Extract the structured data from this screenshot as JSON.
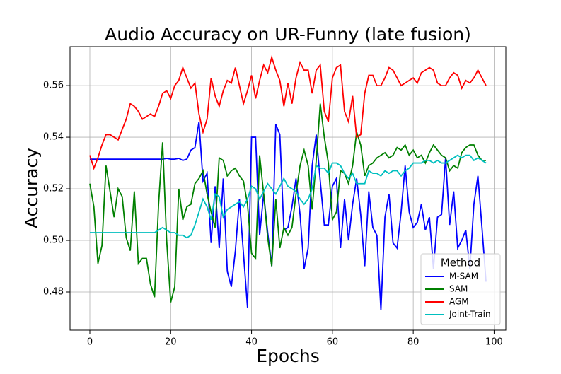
{
  "chart_data": {
    "type": "line",
    "title": "Audio Accuracy on UR-Funny (late fusion)",
    "x_label": "Epochs",
    "y_label": "Accuracy",
    "legend_title": "Method",
    "legend_position": "lower right",
    "grid": true,
    "xlim": [
      -4.9,
      102.9
    ],
    "ylim": [
      0.4652,
      0.5751
    ],
    "xticks": [
      0,
      20,
      40,
      60,
      80,
      100
    ],
    "yticks": [
      0.48,
      {
        "value": 0.5,
        "label": "0.50"
      },
      0.52,
      0.54,
      0.56
    ],
    "x": [
      0,
      1,
      2,
      3,
      4,
      5,
      6,
      7,
      8,
      9,
      10,
      11,
      12,
      13,
      14,
      15,
      16,
      17,
      18,
      19,
      20,
      21,
      22,
      23,
      24,
      25,
      26,
      27,
      28,
      29,
      30,
      31,
      32,
      33,
      34,
      35,
      36,
      37,
      38,
      39,
      40,
      41,
      42,
      43,
      44,
      45,
      46,
      47,
      48,
      49,
      50,
      51,
      52,
      53,
      54,
      55,
      56,
      57,
      58,
      59,
      60,
      61,
      62,
      63,
      64,
      65,
      66,
      67,
      68,
      69,
      70,
      71,
      72,
      73,
      74,
      75,
      76,
      77,
      78,
      79,
      80,
      81,
      82,
      83,
      84,
      85,
      86,
      87,
      88,
      89,
      90,
      91,
      92,
      93,
      94,
      95,
      96,
      97,
      98
    ],
    "series": [
      {
        "name": "M-SAM",
        "color": "#0000ff",
        "values": [
          0.5315,
          0.5315,
          0.5315,
          0.5315,
          0.5315,
          0.5315,
          0.5315,
          0.5315,
          0.5315,
          0.5315,
          0.5315,
          0.5315,
          0.5315,
          0.5315,
          0.5315,
          0.5315,
          0.5315,
          0.5315,
          0.5315,
          0.5318,
          0.5315,
          0.5315,
          0.5318,
          0.531,
          0.5315,
          0.535,
          0.536,
          0.546,
          0.523,
          0.526,
          0.499,
          0.521,
          0.497,
          0.524,
          0.488,
          0.482,
          0.496,
          0.516,
          0.495,
          0.474,
          0.54,
          0.54,
          0.502,
          0.518,
          0.503,
          0.49,
          0.545,
          0.541,
          0.504,
          0.505,
          0.513,
          0.524,
          0.51,
          0.489,
          0.497,
          0.529,
          0.541,
          0.523,
          0.506,
          0.506,
          0.521,
          0.524,
          0.497,
          0.516,
          0.5,
          0.514,
          0.524,
          0.51,
          0.49,
          0.519,
          0.505,
          0.502,
          0.473,
          0.509,
          0.518,
          0.499,
          0.497,
          0.511,
          0.529,
          0.511,
          0.505,
          0.507,
          0.514,
          0.504,
          0.509,
          0.489,
          0.509,
          0.51,
          0.532,
          0.506,
          0.519,
          0.497,
          0.5,
          0.504,
          0.489,
          0.514,
          0.525,
          0.505,
          0.484
        ]
      },
      {
        "name": "SAM",
        "color": "#008000",
        "values": [
          0.522,
          0.513,
          0.491,
          0.498,
          0.529,
          0.519,
          0.509,
          0.52,
          0.517,
          0.501,
          0.496,
          0.519,
          0.491,
          0.493,
          0.493,
          0.483,
          0.478,
          0.514,
          0.538,
          0.5,
          0.476,
          0.482,
          0.52,
          0.508,
          0.513,
          0.514,
          0.522,
          0.524,
          0.527,
          0.518,
          0.511,
          0.505,
          0.532,
          0.531,
          0.525,
          0.527,
          0.528,
          0.525,
          0.523,
          0.514,
          0.495,
          0.493,
          0.533,
          0.518,
          0.501,
          0.49,
          0.516,
          0.497,
          0.505,
          0.502,
          0.505,
          0.518,
          0.529,
          0.535,
          0.529,
          0.512,
          0.531,
          0.553,
          0.54,
          0.53,
          0.508,
          0.511,
          0.527,
          0.526,
          0.522,
          0.529,
          0.542,
          0.537,
          0.525,
          0.529,
          0.53,
          0.532,
          0.533,
          0.534,
          0.532,
          0.533,
          0.536,
          0.535,
          0.537,
          0.533,
          0.535,
          0.532,
          0.533,
          0.53,
          0.534,
          0.537,
          0.535,
          0.533,
          0.532,
          0.527,
          0.529,
          0.528,
          0.534,
          0.536,
          0.537,
          0.537,
          0.533,
          0.531,
          0.531
        ]
      },
      {
        "name": "AGM",
        "color": "#ff0000",
        "values": [
          0.533,
          0.528,
          0.532,
          0.537,
          0.541,
          0.541,
          0.54,
          0.539,
          0.543,
          0.547,
          0.553,
          0.552,
          0.55,
          0.547,
          0.548,
          0.549,
          0.548,
          0.552,
          0.557,
          0.558,
          0.555,
          0.56,
          0.562,
          0.567,
          0.563,
          0.559,
          0.561,
          0.549,
          0.542,
          0.547,
          0.563,
          0.556,
          0.552,
          0.558,
          0.562,
          0.561,
          0.567,
          0.56,
          0.553,
          0.558,
          0.564,
          0.555,
          0.562,
          0.568,
          0.565,
          0.571,
          0.566,
          0.562,
          0.552,
          0.561,
          0.553,
          0.563,
          0.569,
          0.566,
          0.566,
          0.557,
          0.566,
          0.568,
          0.55,
          0.546,
          0.563,
          0.567,
          0.568,
          0.55,
          0.546,
          0.556,
          0.54,
          0.541,
          0.557,
          0.564,
          0.564,
          0.56,
          0.56,
          0.563,
          0.567,
          0.566,
          0.563,
          0.56,
          0.561,
          0.562,
          0.563,
          0.561,
          0.565,
          0.566,
          0.567,
          0.566,
          0.561,
          0.56,
          0.56,
          0.563,
          0.565,
          0.564,
          0.559,
          0.562,
          0.561,
          0.563,
          0.566,
          0.563,
          0.56
        ]
      },
      {
        "name": "Joint-Train",
        "color": "#00bfbf",
        "values": [
          0.503,
          0.503,
          0.503,
          0.503,
          0.503,
          0.503,
          0.503,
          0.503,
          0.503,
          0.503,
          0.503,
          0.503,
          0.503,
          0.503,
          0.503,
          0.503,
          0.503,
          0.504,
          0.505,
          0.504,
          0.503,
          0.503,
          0.502,
          0.502,
          0.501,
          0.502,
          0.506,
          0.511,
          0.516,
          0.513,
          0.508,
          0.518,
          0.517,
          0.509,
          0.512,
          0.513,
          0.514,
          0.515,
          0.513,
          0.516,
          0.521,
          0.52,
          0.516,
          0.519,
          0.522,
          0.52,
          0.518,
          0.521,
          0.524,
          0.521,
          0.52,
          0.519,
          0.516,
          0.514,
          0.516,
          0.52,
          0.529,
          0.528,
          0.528,
          0.526,
          0.53,
          0.53,
          0.529,
          0.526,
          0.524,
          0.526,
          0.522,
          0.522,
          0.522,
          0.527,
          0.526,
          0.526,
          0.525,
          0.527,
          0.526,
          0.527,
          0.527,
          0.525,
          0.527,
          0.528,
          0.53,
          0.53,
          0.53,
          0.531,
          0.531,
          0.53,
          0.531,
          0.53,
          0.53,
          0.531,
          0.532,
          0.533,
          0.532,
          0.533,
          0.533,
          0.531,
          0.532,
          0.531,
          0.53
        ]
      }
    ]
  }
}
